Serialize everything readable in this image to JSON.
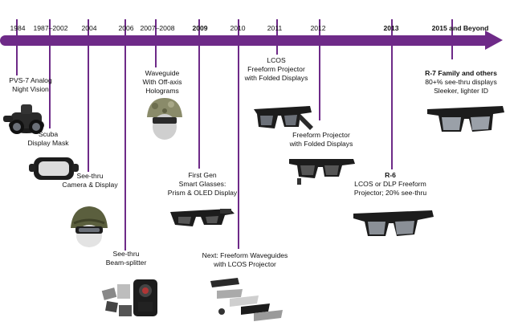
{
  "timeline": {
    "years": [
      "1984",
      "1987–2002",
      "2004",
      "2006",
      "2007–2008",
      "2009",
      "2010",
      "2011",
      "2012",
      "2013",
      "2015 and Beyond"
    ],
    "bold_years": [
      "2009",
      "2013",
      "2015 and Beyond"
    ]
  },
  "products": [
    {
      "lines": [
        "PVS-7 Analog",
        "Night Vision"
      ],
      "icon": "night-vision-goggles-icon"
    },
    {
      "lines": [
        "Scuba",
        "Display Mask"
      ],
      "icon": "scuba-mask-icon"
    },
    {
      "lines": [
        "See-thru",
        "Camera & Display"
      ],
      "icon": "military-helmet-icon"
    },
    {
      "lines": [
        "See-thru",
        "Beam-splitter"
      ],
      "icon": "beam-splitter-device-icon"
    },
    {
      "lines": [
        "Waveguide",
        "With Off-axis",
        "Holograms"
      ],
      "icon": "camo-helmet-icon"
    },
    {
      "lines": [
        "First Gen",
        "Smart Glasses:",
        "Prism & OLED Display"
      ],
      "icon": "smart-glasses-icon"
    },
    {
      "lines": [
        "Next: Freeform Waveguides",
        "with LCOS Projector"
      ],
      "icon": "exploded-glasses-icon"
    },
    {
      "lines": [
        "LCOS",
        "Freeform Projector",
        "with Folded Displays"
      ],
      "icon": "lcos-glasses-icon"
    },
    {
      "lines": [
        "Freeform Projector",
        "with Folded Displays"
      ],
      "icon": "freeform-glasses-icon"
    },
    {
      "lines": [
        "R-6",
        "LCOS or DLP Freeform",
        "Projector; 20% see-thru"
      ],
      "icon": "r6-glasses-icon"
    },
    {
      "lines": [
        "R-7 Family and others",
        "80+% see-thru displays",
        "Sleeker, lighter ID"
      ],
      "icon": "r7-glasses-icon"
    }
  ],
  "colors": {
    "timeline": "#6e2a88",
    "device_dark": "#1c1c1c",
    "device_mid": "#555555",
    "lens": "#8a8f96"
  }
}
